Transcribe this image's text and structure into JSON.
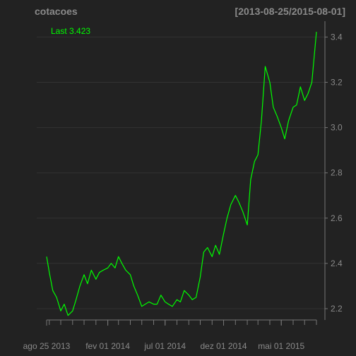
{
  "chart_data": {
    "type": "line",
    "title": "cotacoes",
    "date_range": "[2013-08-25/2015-08-01]",
    "last_label": "Last 3.423",
    "ylim": [
      2.15,
      3.47
    ],
    "y_ticks": [
      2.2,
      2.4,
      2.6,
      2.8,
      3.0,
      3.2,
      3.4
    ],
    "y_tick_labels": [
      "2.2",
      "2.4",
      "2.6",
      "2.8",
      "3.0",
      "3.2",
      "3.4"
    ],
    "x_range": [
      "2013-08-25",
      "2015-08-01"
    ],
    "x_ticks": [
      "2013-08-25",
      "2014-02-01",
      "2014-07-01",
      "2014-12-01",
      "2015-05-01"
    ],
    "x_tick_labels": [
      "ago 25 2013",
      "fev 01 2014",
      "jul 01 2014",
      "dez 01 2014",
      "mai 01 2015"
    ],
    "grid": true,
    "colors": {
      "background": "#222222",
      "line": "#00ff00",
      "grid": "#333333",
      "text": "#8a8a8a",
      "axis": "#777777"
    },
    "series": [
      {
        "x": [
          "2013-08-25",
          "2013-09-01",
          "2013-09-10",
          "2013-09-20",
          "2013-10-01",
          "2013-10-10",
          "2013-10-20",
          "2013-11-01",
          "2013-11-10",
          "2013-11-20",
          "2013-12-01",
          "2013-12-10",
          "2013-12-20",
          "2014-01-01",
          "2014-01-10",
          "2014-01-20",
          "2014-02-01",
          "2014-02-10",
          "2014-02-20",
          "2014-03-01",
          "2014-03-10",
          "2014-03-20",
          "2014-04-01",
          "2014-04-10",
          "2014-04-20",
          "2014-05-01",
          "2014-05-10",
          "2014-05-20",
          "2014-06-01",
          "2014-06-10",
          "2014-06-20",
          "2014-07-01",
          "2014-07-10",
          "2014-07-20",
          "2014-08-01",
          "2014-08-10",
          "2014-08-20",
          "2014-09-01",
          "2014-09-10",
          "2014-09-20",
          "2014-10-01",
          "2014-10-10",
          "2014-10-20",
          "2014-11-01",
          "2014-11-10",
          "2014-11-20",
          "2014-12-01",
          "2014-12-10",
          "2014-12-20",
          "2015-01-01",
          "2015-01-10",
          "2015-01-20",
          "2015-02-01",
          "2015-02-10",
          "2015-02-20",
          "2015-03-01",
          "2015-03-10",
          "2015-03-20",
          "2015-04-01",
          "2015-04-10",
          "2015-04-20",
          "2015-05-01",
          "2015-05-10",
          "2015-05-20",
          "2015-06-01",
          "2015-06-10",
          "2015-06-20",
          "2015-07-01",
          "2015-07-10",
          "2015-07-20",
          "2015-08-01"
        ],
        "y": [
          2.43,
          2.36,
          2.28,
          2.25,
          2.19,
          2.22,
          2.17,
          2.19,
          2.24,
          2.3,
          2.35,
          2.31,
          2.37,
          2.33,
          2.36,
          2.37,
          2.38,
          2.4,
          2.38,
          2.43,
          2.4,
          2.37,
          2.35,
          2.3,
          2.26,
          2.21,
          2.22,
          2.23,
          2.22,
          2.22,
          2.26,
          2.23,
          2.22,
          2.21,
          2.24,
          2.23,
          2.28,
          2.26,
          2.24,
          2.25,
          2.34,
          2.45,
          2.47,
          2.43,
          2.48,
          2.44,
          2.53,
          2.6,
          2.66,
          2.7,
          2.67,
          2.63,
          2.57,
          2.77,
          2.85,
          2.88,
          3.03,
          3.27,
          3.2,
          3.09,
          3.05,
          3.0,
          2.95,
          3.03,
          3.09,
          3.1,
          3.18,
          3.12,
          3.15,
          3.2,
          3.423
        ]
      }
    ]
  }
}
